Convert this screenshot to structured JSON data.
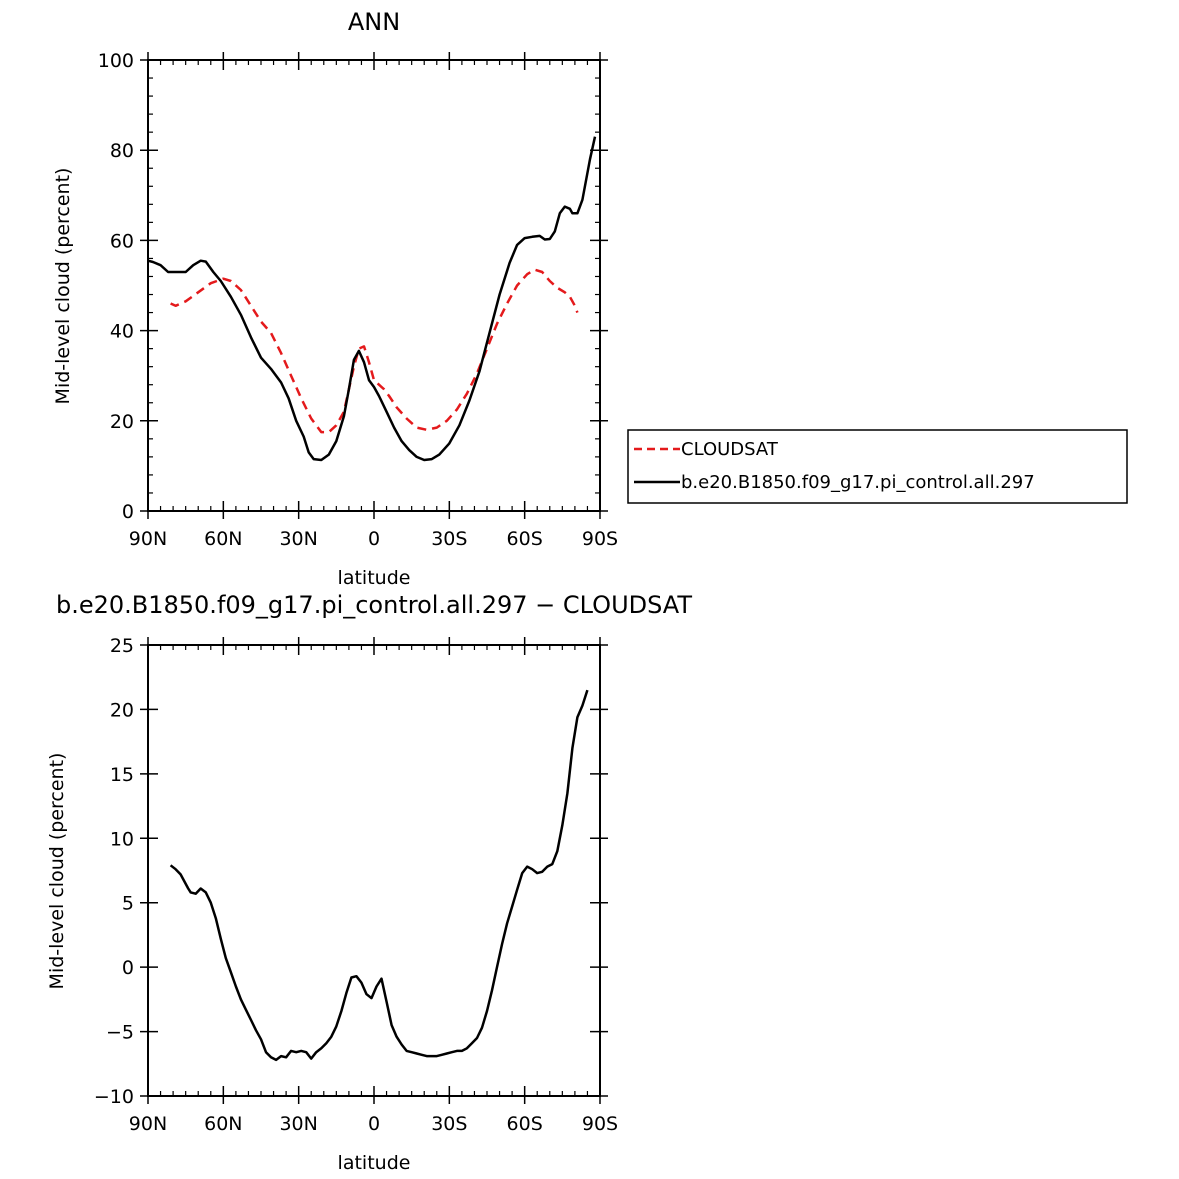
{
  "chart_data": [
    {
      "type": "line",
      "title": "ANN",
      "xlabel": "latitude",
      "ylabel": "Mid-level cloud (percent)",
      "xlim": [
        90,
        -90
      ],
      "ylim": [
        0,
        100
      ],
      "x_ticks": [
        {
          "value": 90,
          "label": "90N"
        },
        {
          "value": 60,
          "label": "60N"
        },
        {
          "value": 30,
          "label": "30N"
        },
        {
          "value": 0,
          "label": "0"
        },
        {
          "value": -30,
          "label": "30S"
        },
        {
          "value": -60,
          "label": "60S"
        },
        {
          "value": -90,
          "label": "90S"
        }
      ],
      "y_ticks": [
        0,
        20,
        40,
        60,
        80,
        100
      ],
      "legend_position": "right",
      "series": [
        {
          "name": "CLOUDSAT",
          "color": "#e41a1c",
          "dash": "dashed",
          "points": [
            [
              81,
              46
            ],
            [
              79,
              45.5
            ],
            [
              75,
              46.5
            ],
            [
              70,
              48.5
            ],
            [
              65,
              50.5
            ],
            [
              60,
              51.5
            ],
            [
              57,
              51
            ],
            [
              53,
              49
            ],
            [
              49,
              45.5
            ],
            [
              45,
              42
            ],
            [
              41,
              39.5
            ],
            [
              37,
              35
            ],
            [
              33,
              30
            ],
            [
              29,
              25
            ],
            [
              25,
              20.5
            ],
            [
              21,
              17.5
            ],
            [
              18,
              17.5
            ],
            [
              15,
              19
            ],
            [
              12,
              22
            ],
            [
              10,
              27
            ],
            [
              8,
              32
            ],
            [
              6,
              36
            ],
            [
              4,
              36.5
            ],
            [
              2,
              33
            ],
            [
              0,
              29
            ],
            [
              -2,
              28
            ],
            [
              -4,
              27
            ],
            [
              -6,
              25.5
            ],
            [
              -9,
              23
            ],
            [
              -13,
              20.5
            ],
            [
              -17,
              18.5
            ],
            [
              -21,
              18
            ],
            [
              -25,
              18.5
            ],
            [
              -29,
              20
            ],
            [
              -33,
              22.5
            ],
            [
              -37,
              26
            ],
            [
              -41,
              30.5
            ],
            [
              -45,
              36
            ],
            [
              -49,
              41.5
            ],
            [
              -53,
              46
            ],
            [
              -57,
              50
            ],
            [
              -61,
              52.5
            ],
            [
              -64,
              53.5
            ],
            [
              -67,
              53
            ],
            [
              -70,
              51
            ],
            [
              -73,
              49.5
            ],
            [
              -76,
              48.5
            ],
            [
              -78,
              47.5
            ],
            [
              -80,
              45.5
            ],
            [
              -81,
              44
            ]
          ]
        },
        {
          "name": "b.e20.B1850.f09_g17.pi_control.all.297",
          "color": "#000000",
          "dash": "solid",
          "points": [
            [
              90,
              55.5
            ],
            [
              88,
              55.2
            ],
            [
              85,
              54.5
            ],
            [
              82,
              53
            ],
            [
              78,
              53
            ],
            [
              75,
              53
            ],
            [
              72,
              54.5
            ],
            [
              69,
              55.5
            ],
            [
              67,
              55.3
            ],
            [
              64,
              53
            ],
            [
              61,
              51
            ],
            [
              57,
              47.5
            ],
            [
              53,
              43.5
            ],
            [
              49,
              38.5
            ],
            [
              45,
              34
            ],
            [
              41,
              31.5
            ],
            [
              37,
              28.5
            ],
            [
              34,
              25
            ],
            [
              31,
              20
            ],
            [
              28,
              16.5
            ],
            [
              26,
              13
            ],
            [
              24,
              11.5
            ],
            [
              21,
              11.3
            ],
            [
              18,
              12.5
            ],
            [
              15,
              15.5
            ],
            [
              12,
              21
            ],
            [
              10,
              27
            ],
            [
              8,
              33.5
            ],
            [
              6,
              35.5
            ],
            [
              4,
              33
            ],
            [
              2,
              29
            ],
            [
              0,
              27.5
            ],
            [
              -2,
              25.5
            ],
            [
              -5,
              22
            ],
            [
              -8,
              18.5
            ],
            [
              -11,
              15.5
            ],
            [
              -14,
              13.5
            ],
            [
              -17,
              12
            ],
            [
              -20,
              11.3
            ],
            [
              -23,
              11.5
            ],
            [
              -26,
              12.5
            ],
            [
              -30,
              15
            ],
            [
              -34,
              19
            ],
            [
              -38,
              24.5
            ],
            [
              -42,
              31
            ],
            [
              -46,
              39.5
            ],
            [
              -50,
              48
            ],
            [
              -54,
              55
            ],
            [
              -57,
              59
            ],
            [
              -60,
              60.5
            ],
            [
              -63,
              60.8
            ],
            [
              -66,
              61
            ],
            [
              -68,
              60.2
            ],
            [
              -70,
              60.3
            ],
            [
              -72,
              62
            ],
            [
              -74,
              66
            ],
            [
              -76,
              67.5
            ],
            [
              -78,
              67
            ],
            [
              -79,
              66
            ],
            [
              -81,
              66
            ],
            [
              -83,
              69
            ],
            [
              -86,
              78
            ],
            [
              -88,
              83
            ]
          ]
        }
      ]
    },
    {
      "type": "line",
      "title": "b.e20.B1850.f09_g17.pi_control.all.297 − CLOUDSAT",
      "xlabel": "latitude",
      "ylabel": "Mid-level cloud (percent)",
      "xlim": [
        90,
        -90
      ],
      "ylim": [
        -10,
        25
      ],
      "x_ticks": [
        {
          "value": 90,
          "label": "90N"
        },
        {
          "value": 60,
          "label": "60N"
        },
        {
          "value": 30,
          "label": "30N"
        },
        {
          "value": 0,
          "label": "0"
        },
        {
          "value": -30,
          "label": "30S"
        },
        {
          "value": -60,
          "label": "60S"
        },
        {
          "value": -90,
          "label": "90S"
        }
      ],
      "y_ticks": [
        -10,
        -5,
        0,
        5,
        10,
        15,
        20,
        25
      ],
      "series": [
        {
          "color": "#000000",
          "dash": "solid",
          "points": [
            [
              81,
              7.9
            ],
            [
              79,
              7.6
            ],
            [
              77,
              7.2
            ],
            [
              74,
              6.1
            ],
            [
              73,
              5.8
            ],
            [
              71,
              5.7
            ],
            [
              69,
              6.1
            ],
            [
              67,
              5.8
            ],
            [
              65,
              5
            ],
            [
              63,
              3.8
            ],
            [
              61,
              2.2
            ],
            [
              59,
              0.7
            ],
            [
              57,
              -0.4
            ],
            [
              55,
              -1.5
            ],
            [
              53,
              -2.5
            ],
            [
              51,
              -3.3
            ],
            [
              49,
              -4.1
            ],
            [
              47,
              -4.9
            ],
            [
              45,
              -5.6
            ],
            [
              43,
              -6.6
            ],
            [
              41,
              -7
            ],
            [
              39,
              -7.2
            ],
            [
              37,
              -6.9
            ],
            [
              35,
              -7
            ],
            [
              33,
              -6.5
            ],
            [
              31,
              -6.6
            ],
            [
              29,
              -6.5
            ],
            [
              27,
              -6.6
            ],
            [
              25,
              -7.1
            ],
            [
              23,
              -6.6
            ],
            [
              21,
              -6.3
            ],
            [
              19,
              -5.9
            ],
            [
              17,
              -5.4
            ],
            [
              15,
              -4.6
            ],
            [
              13,
              -3.4
            ],
            [
              11,
              -2
            ],
            [
              9,
              -0.8
            ],
            [
              7,
              -0.7
            ],
            [
              5,
              -1.2
            ],
            [
              3,
              -2.1
            ],
            [
              1,
              -2.4
            ],
            [
              -1,
              -1.5
            ],
            [
              -3,
              -0.9
            ],
            [
              -5,
              -2.7
            ],
            [
              -7,
              -4.5
            ],
            [
              -9,
              -5.4
            ],
            [
              -11,
              -6
            ],
            [
              -13,
              -6.5
            ],
            [
              -15,
              -6.6
            ],
            [
              -17,
              -6.7
            ],
            [
              -19,
              -6.8
            ],
            [
              -21,
              -6.9
            ],
            [
              -23,
              -6.9
            ],
            [
              -25,
              -6.9
            ],
            [
              -27,
              -6.8
            ],
            [
              -29,
              -6.7
            ],
            [
              -31,
              -6.6
            ],
            [
              -33,
              -6.5
            ],
            [
              -35,
              -6.5
            ],
            [
              -37,
              -6.3
            ],
            [
              -39,
              -5.9
            ],
            [
              -41,
              -5.5
            ],
            [
              -43,
              -4.7
            ],
            [
              -45,
              -3.4
            ],
            [
              -47,
              -1.8
            ],
            [
              -49,
              0
            ],
            [
              -51,
              1.8
            ],
            [
              -53,
              3.4
            ],
            [
              -55,
              4.7
            ],
            [
              -57,
              6
            ],
            [
              -59,
              7.3
            ],
            [
              -61,
              7.8
            ],
            [
              -63,
              7.6
            ],
            [
              -65,
              7.3
            ],
            [
              -67,
              7.4
            ],
            [
              -69,
              7.8
            ],
            [
              -71,
              8
            ],
            [
              -73,
              9
            ],
            [
              -75,
              11
            ],
            [
              -77,
              13.5
            ],
            [
              -79,
              17
            ],
            [
              -81,
              19.4
            ],
            [
              -83,
              20.3
            ],
            [
              -85,
              21.5
            ]
          ]
        }
      ]
    }
  ]
}
